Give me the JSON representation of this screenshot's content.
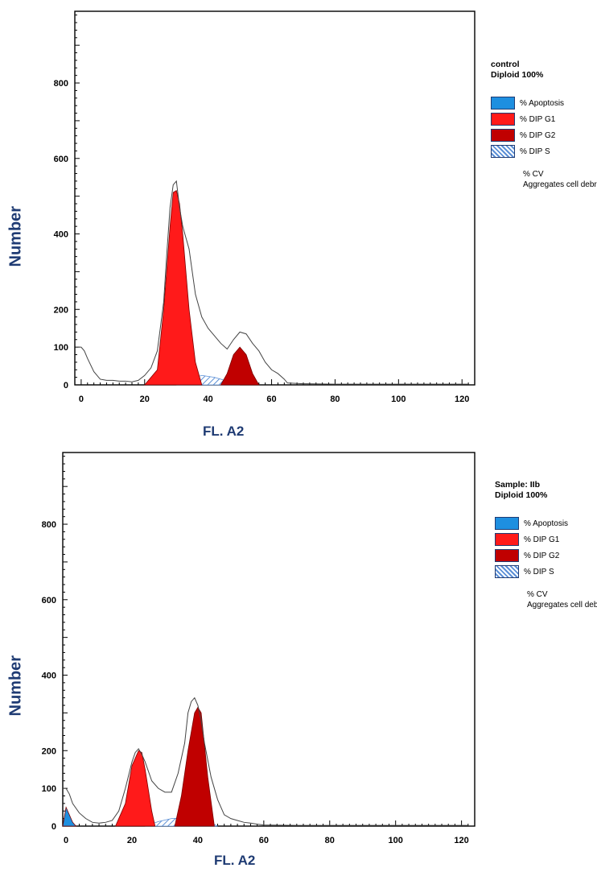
{
  "chart_data": [
    {
      "type": "histogram",
      "xlabel": "FL. A2",
      "ylabel": "Number",
      "xlim": [
        -2,
        124
      ],
      "ylim": [
        0,
        990
      ],
      "x_ticks": [
        0,
        20,
        40,
        60,
        80,
        100,
        120
      ],
      "y_ticks": [
        0,
        100,
        200,
        400,
        600,
        800
      ],
      "legend": {
        "title_line1": "control",
        "title_line2": "Diploid 100%",
        "items": [
          {
            "label": "% Apoptosis",
            "color": "#1e8fe0",
            "pattern": "solid"
          },
          {
            "label": "% DIP G1",
            "color": "#ff1a1a",
            "pattern": "solid"
          },
          {
            "label": "% DIP G2",
            "color": "#c00000",
            "pattern": "solid"
          },
          {
            "label": "% DIP S",
            "color": "#5b8fd6",
            "pattern": "hatch"
          }
        ],
        "notes": [
          "% CV",
          "Aggregates cell debris"
        ]
      },
      "series": [
        {
          "name": "% DIP G1",
          "color": "#ff1a1a",
          "x": [
            20,
            24,
            26,
            28,
            29,
            30,
            31,
            32,
            34,
            36,
            38
          ],
          "y": [
            0,
            40,
            200,
            420,
            510,
            515,
            480,
            400,
            200,
            60,
            0
          ]
        },
        {
          "name": "% DIP G2",
          "color": "#c00000",
          "x": [
            44,
            46,
            48,
            50,
            52,
            54,
            56
          ],
          "y": [
            0,
            30,
            80,
            100,
            80,
            30,
            0
          ]
        },
        {
          "name": "% DIP S",
          "color": "#5b8fd6",
          "x": [
            30,
            34,
            38,
            42,
            46,
            50
          ],
          "y": [
            0,
            15,
            25,
            20,
            10,
            0
          ]
        },
        {
          "name": "Histogram",
          "color": "#444444",
          "x": [
            -1,
            0,
            1,
            2,
            4,
            6,
            8,
            10,
            12,
            14,
            16,
            18,
            20,
            22,
            24,
            26,
            27,
            28,
            29,
            30,
            31,
            32,
            33,
            34,
            35,
            36,
            38,
            40,
            42,
            44,
            46,
            48,
            50,
            52,
            54,
            56,
            58,
            60,
            62,
            64,
            65,
            70,
            80,
            90,
            100,
            110,
            120,
            122
          ],
          "y": [
            100,
            100,
            90,
            70,
            35,
            15,
            12,
            12,
            10,
            10,
            8,
            12,
            25,
            45,
            90,
            220,
            350,
            470,
            530,
            540,
            470,
            420,
            390,
            360,
            300,
            240,
            180,
            150,
            130,
            110,
            95,
            120,
            140,
            135,
            110,
            90,
            60,
            40,
            30,
            15,
            5,
            3,
            2,
            2,
            2,
            2,
            2,
            2
          ]
        }
      ]
    },
    {
      "type": "histogram",
      "xlabel": "FL. A2",
      "ylabel": "Number",
      "xlim": [
        -1,
        124
      ],
      "ylim": [
        0,
        990
      ],
      "x_ticks": [
        0,
        20,
        40,
        60,
        80,
        100,
        120
      ],
      "y_ticks": [
        0,
        100,
        200,
        400,
        600,
        800
      ],
      "legend": {
        "title_line1": "Sample: IIb",
        "title_line2": "Diploid 100%",
        "items": [
          {
            "label": "% Apoptosis",
            "color": "#1e8fe0",
            "pattern": "solid"
          },
          {
            "label": "% DIP G1",
            "color": "#ff1a1a",
            "pattern": "solid"
          },
          {
            "label": "% DIP G2",
            "color": "#c00000",
            "pattern": "solid"
          },
          {
            "label": "% DIP S",
            "color": "#5b8fd6",
            "pattern": "hatch"
          }
        ],
        "notes": [
          "% CV",
          "Aggregates cell debris"
        ]
      },
      "series": [
        {
          "name": "% Apoptosis",
          "color": "#1e8fe0",
          "x": [
            -1,
            0,
            1,
            2,
            3
          ],
          "y": [
            0,
            50,
            30,
            10,
            0
          ]
        },
        {
          "name": "% DIP G1",
          "color": "#ff1a1a",
          "x": [
            15,
            18,
            20,
            22,
            23,
            24,
            26,
            27
          ],
          "y": [
            0,
            60,
            160,
            200,
            195,
            150,
            40,
            0
          ]
        },
        {
          "name": "% DIP G2",
          "color": "#c00000",
          "x": [
            33,
            35,
            37,
            39,
            40,
            41,
            43,
            45
          ],
          "y": [
            0,
            80,
            200,
            300,
            315,
            300,
            130,
            0
          ]
        },
        {
          "name": "% DIP S",
          "color": "#5b8fd6",
          "x": [
            24,
            28,
            32,
            36,
            40,
            44,
            46
          ],
          "y": [
            0,
            12,
            20,
            22,
            18,
            8,
            0
          ]
        },
        {
          "name": "Histogram",
          "color": "#444444",
          "x": [
            -1,
            0,
            1,
            2,
            4,
            6,
            8,
            10,
            12,
            14,
            16,
            18,
            20,
            21,
            22,
            23,
            24,
            26,
            28,
            30,
            32,
            34,
            36,
            37,
            38,
            39,
            40,
            41,
            42,
            44,
            46,
            48,
            50,
            52,
            54,
            56,
            58,
            60,
            70,
            80,
            90,
            100,
            110,
            120,
            122
          ],
          "y": [
            100,
            100,
            85,
            60,
            35,
            20,
            10,
            8,
            10,
            15,
            40,
            100,
            170,
            195,
            205,
            190,
            170,
            120,
            100,
            90,
            90,
            140,
            220,
            300,
            330,
            340,
            320,
            280,
            220,
            130,
            70,
            30,
            20,
            15,
            10,
            8,
            5,
            3,
            2,
            2,
            2,
            2,
            2,
            2,
            2
          ]
        }
      ]
    }
  ]
}
